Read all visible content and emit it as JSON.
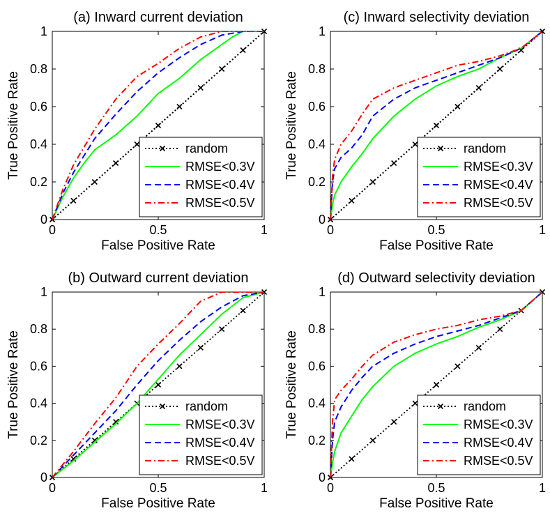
{
  "figure": {
    "legend_labels": [
      "random",
      "RMSE<0.3V",
      "RMSE<0.4V",
      "RMSE<0.5V"
    ]
  },
  "chart_data": [
    {
      "type": "line",
      "title": "(a) Inward current deviation",
      "xlabel": "False Positive Rate",
      "ylabel": "True Positive Rate",
      "xlim": [
        0,
        1
      ],
      "ylim": [
        0,
        1
      ],
      "xticks": [
        "0",
        "0.5",
        "1"
      ],
      "yticks": [
        "0",
        "0.2",
        "0.4",
        "0.6",
        "0.8",
        "1"
      ],
      "grid": false,
      "legend_position": "bottom-right",
      "series": [
        {
          "name": "random",
          "color": "#000000",
          "dash": "dotted",
          "marker": "x",
          "x": [
            0,
            0.1,
            0.2,
            0.3,
            0.4,
            0.5,
            0.6,
            0.7,
            0.8,
            0.9,
            1
          ],
          "y": [
            0,
            0.1,
            0.2,
            0.3,
            0.4,
            0.5,
            0.6,
            0.7,
            0.8,
            0.9,
            1
          ]
        },
        {
          "name": "RMSE<0.3V",
          "color": "#00ff00",
          "dash": "solid",
          "x": [
            0,
            0.05,
            0.1,
            0.15,
            0.2,
            0.3,
            0.4,
            0.5,
            0.6,
            0.7,
            0.8,
            0.85,
            0.9,
            1
          ],
          "y": [
            0,
            0.12,
            0.22,
            0.3,
            0.37,
            0.45,
            0.55,
            0.67,
            0.75,
            0.85,
            0.93,
            0.97,
            1,
            1
          ]
        },
        {
          "name": "RMSE<0.4V",
          "color": "#0000ff",
          "dash": "dashed",
          "x": [
            0,
            0.05,
            0.1,
            0.2,
            0.3,
            0.4,
            0.5,
            0.6,
            0.7,
            0.8,
            0.9,
            1
          ],
          "y": [
            0,
            0.14,
            0.25,
            0.43,
            0.56,
            0.68,
            0.78,
            0.86,
            0.93,
            0.98,
            1,
            1
          ]
        },
        {
          "name": "RMSE<0.5V",
          "color": "#ff0000",
          "dash": "dashdot",
          "x": [
            0,
            0.05,
            0.1,
            0.2,
            0.3,
            0.4,
            0.5,
            0.6,
            0.7,
            0.8,
            1
          ],
          "y": [
            0,
            0.16,
            0.29,
            0.48,
            0.64,
            0.76,
            0.83,
            0.91,
            0.97,
            1,
            1
          ]
        }
      ]
    },
    {
      "type": "line",
      "title": "(c) Inward selectivity deviation",
      "xlabel": "False Positive Rate",
      "ylabel": "True Positive Rate",
      "xlim": [
        0,
        1
      ],
      "ylim": [
        0,
        1
      ],
      "xticks": [
        "0",
        "0.5",
        "1"
      ],
      "yticks": [
        "0",
        "0.2",
        "0.4",
        "0.6",
        "0.8",
        "1"
      ],
      "grid": false,
      "legend_position": "bottom-right",
      "series": [
        {
          "name": "random",
          "color": "#000000",
          "dash": "dotted",
          "marker": "x",
          "x": [
            0,
            0.1,
            0.2,
            0.3,
            0.4,
            0.5,
            0.6,
            0.7,
            0.8,
            0.9,
            1
          ],
          "y": [
            0,
            0.1,
            0.2,
            0.3,
            0.4,
            0.5,
            0.6,
            0.7,
            0.8,
            0.9,
            1
          ]
        },
        {
          "name": "RMSE<0.3V",
          "color": "#00ff00",
          "dash": "solid",
          "x": [
            0,
            0.01,
            0.02,
            0.05,
            0.1,
            0.15,
            0.2,
            0.3,
            0.4,
            0.5,
            0.6,
            0.7,
            0.8,
            0.9,
            1
          ],
          "y": [
            0,
            0.08,
            0.13,
            0.2,
            0.28,
            0.35,
            0.43,
            0.55,
            0.64,
            0.71,
            0.76,
            0.8,
            0.86,
            0.91,
            1
          ]
        },
        {
          "name": "RMSE<0.4V",
          "color": "#0000ff",
          "dash": "dashed",
          "x": [
            0,
            0.01,
            0.02,
            0.05,
            0.1,
            0.15,
            0.2,
            0.3,
            0.4,
            0.5,
            0.6,
            0.7,
            0.8,
            0.9,
            1
          ],
          "y": [
            0,
            0.2,
            0.27,
            0.33,
            0.38,
            0.45,
            0.55,
            0.64,
            0.7,
            0.74,
            0.78,
            0.82,
            0.86,
            0.91,
            1
          ]
        },
        {
          "name": "RMSE<0.5V",
          "color": "#ff0000",
          "dash": "dashdot",
          "x": [
            0,
            0.01,
            0.02,
            0.05,
            0.1,
            0.15,
            0.2,
            0.3,
            0.4,
            0.5,
            0.6,
            0.7,
            0.8,
            0.9,
            1
          ],
          "y": [
            0,
            0.23,
            0.32,
            0.4,
            0.47,
            0.56,
            0.64,
            0.7,
            0.74,
            0.78,
            0.82,
            0.84,
            0.87,
            0.91,
            1
          ]
        }
      ]
    },
    {
      "type": "line",
      "title": "(b) Outward current deviation",
      "xlabel": "False Positive Rate",
      "ylabel": "True Positive Rate",
      "xlim": [
        0,
        1
      ],
      "ylim": [
        0,
        1
      ],
      "xticks": [
        "0",
        "0.5",
        "1"
      ],
      "yticks": [
        "0",
        "0.2",
        "0.4",
        "0.6",
        "0.8",
        "1"
      ],
      "grid": false,
      "legend_position": "bottom-right",
      "series": [
        {
          "name": "random",
          "color": "#000000",
          "dash": "dotted",
          "marker": "x",
          "x": [
            0,
            0.1,
            0.2,
            0.3,
            0.4,
            0.5,
            0.6,
            0.7,
            0.8,
            0.9,
            1
          ],
          "y": [
            0,
            0.1,
            0.2,
            0.3,
            0.4,
            0.5,
            0.6,
            0.7,
            0.8,
            0.9,
            1
          ]
        },
        {
          "name": "RMSE<0.3V",
          "color": "#00ff00",
          "dash": "solid",
          "x": [
            0,
            0.1,
            0.2,
            0.3,
            0.4,
            0.5,
            0.6,
            0.7,
            0.8,
            0.9,
            1
          ],
          "y": [
            0,
            0.09,
            0.19,
            0.29,
            0.4,
            0.53,
            0.66,
            0.77,
            0.88,
            0.97,
            1
          ]
        },
        {
          "name": "RMSE<0.4V",
          "color": "#0000ff",
          "dash": "dashed",
          "x": [
            0,
            0.1,
            0.2,
            0.3,
            0.4,
            0.5,
            0.6,
            0.7,
            0.8,
            0.9,
            1
          ],
          "y": [
            0,
            0.12,
            0.24,
            0.36,
            0.5,
            0.63,
            0.74,
            0.84,
            0.92,
            0.98,
            1
          ]
        },
        {
          "name": "RMSE<0.5V",
          "color": "#ff0000",
          "dash": "dashdot",
          "x": [
            0,
            0.1,
            0.2,
            0.3,
            0.4,
            0.5,
            0.6,
            0.7,
            0.8,
            1
          ],
          "y": [
            0,
            0.14,
            0.29,
            0.43,
            0.6,
            0.72,
            0.83,
            0.95,
            1,
            1
          ]
        }
      ]
    },
    {
      "type": "line",
      "title": "(d) Outward selectivity deviation",
      "xlabel": "False Positive Rate",
      "ylabel": "True Positive Rate",
      "xlim": [
        0,
        1
      ],
      "ylim": [
        0,
        1
      ],
      "xticks": [
        "0",
        "0.5",
        "1"
      ],
      "yticks": [
        "0",
        "0.2",
        "0.4",
        "0.6",
        "0.8",
        "1"
      ],
      "grid": false,
      "legend_position": "bottom-right",
      "series": [
        {
          "name": "random",
          "color": "#000000",
          "dash": "dotted",
          "marker": "x",
          "x": [
            0,
            0.1,
            0.2,
            0.3,
            0.4,
            0.5,
            0.6,
            0.7,
            0.8,
            0.9,
            1
          ],
          "y": [
            0,
            0.1,
            0.2,
            0.3,
            0.4,
            0.5,
            0.6,
            0.7,
            0.8,
            0.9,
            1
          ]
        },
        {
          "name": "RMSE<0.3V",
          "color": "#00ff00",
          "dash": "solid",
          "x": [
            0,
            0.01,
            0.02,
            0.05,
            0.1,
            0.15,
            0.2,
            0.3,
            0.4,
            0.5,
            0.6,
            0.7,
            0.8,
            0.9,
            1
          ],
          "y": [
            0,
            0.08,
            0.14,
            0.24,
            0.33,
            0.42,
            0.49,
            0.6,
            0.67,
            0.72,
            0.76,
            0.81,
            0.85,
            0.9,
            1
          ]
        },
        {
          "name": "RMSE<0.4V",
          "color": "#0000ff",
          "dash": "dashed",
          "x": [
            0,
            0.01,
            0.02,
            0.05,
            0.1,
            0.15,
            0.2,
            0.3,
            0.4,
            0.5,
            0.6,
            0.7,
            0.8,
            0.9,
            1
          ],
          "y": [
            0,
            0.2,
            0.3,
            0.38,
            0.47,
            0.54,
            0.6,
            0.67,
            0.72,
            0.76,
            0.79,
            0.82,
            0.86,
            0.9,
            1
          ]
        },
        {
          "name": "RMSE<0.5V",
          "color": "#ff0000",
          "dash": "dashdot",
          "x": [
            0,
            0.01,
            0.02,
            0.05,
            0.1,
            0.15,
            0.2,
            0.3,
            0.4,
            0.5,
            0.6,
            0.7,
            0.8,
            0.9,
            1
          ],
          "y": [
            0,
            0.3,
            0.42,
            0.47,
            0.53,
            0.6,
            0.66,
            0.73,
            0.77,
            0.8,
            0.82,
            0.85,
            0.87,
            0.9,
            1
          ]
        }
      ]
    }
  ]
}
